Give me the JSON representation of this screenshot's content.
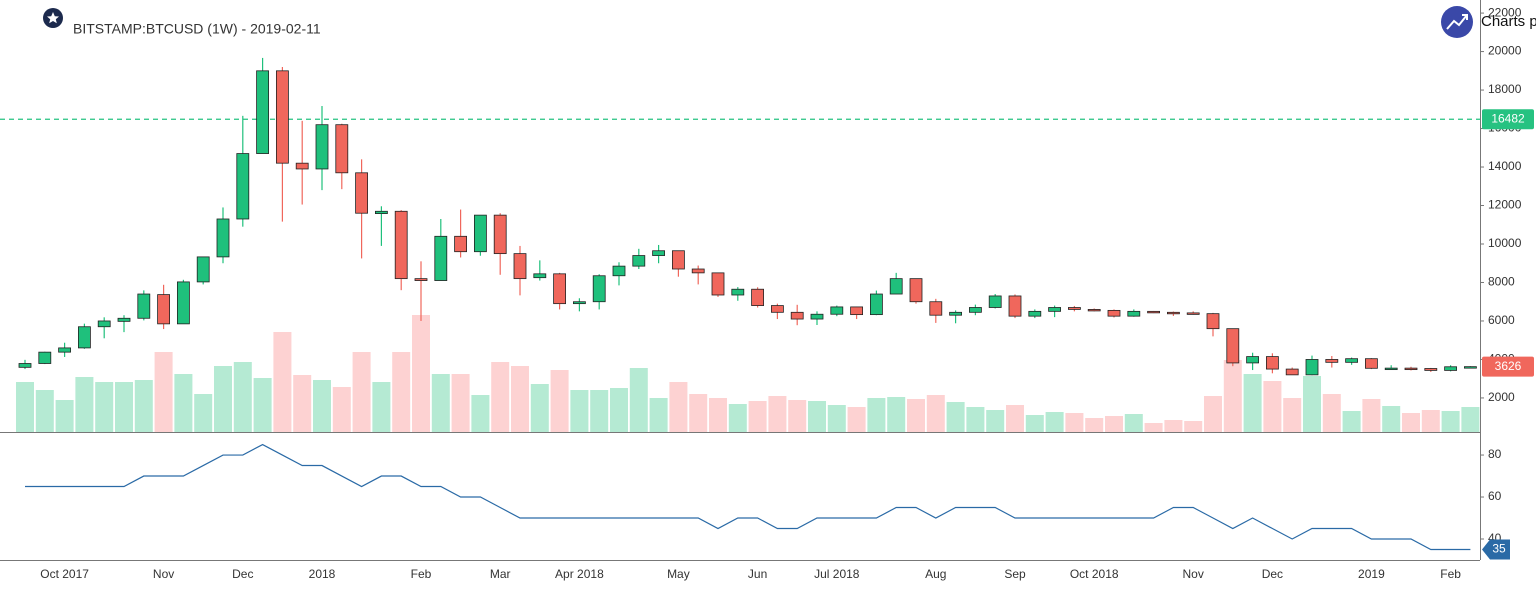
{
  "chart_data": {
    "type": "candlestick",
    "title": "BITSTAMP:BTCUSD (1W) - 2019-02-11",
    "brand": "Charts p",
    "categories": [
      null,
      null,
      "Oct 2017",
      null,
      null,
      null,
      null,
      "Nov",
      null,
      null,
      null,
      "Dec",
      null,
      null,
      null,
      "2018",
      null,
      null,
      null,
      null,
      "Feb",
      null,
      null,
      null,
      "Mar",
      null,
      null,
      null,
      "Apr 2018",
      null,
      null,
      null,
      null,
      "May",
      null,
      null,
      null,
      "Jun",
      null,
      null,
      null,
      "Jul 2018",
      null,
      null,
      null,
      null,
      "Aug",
      null,
      null,
      null,
      "Sep",
      null,
      null,
      null,
      "Oct 2018",
      null,
      null,
      null,
      null,
      "Nov",
      null,
      null,
      null,
      "Dec",
      null,
      null,
      null,
      null,
      "2019",
      null,
      null,
      null,
      "Feb",
      null
    ],
    "open": [
      3590,
      3790,
      4380,
      4600,
      5700,
      5980,
      6140,
      7370,
      5850,
      8030,
      9330,
      11300,
      14700,
      19000,
      14200,
      13900,
      16200,
      13700,
      11580,
      11700,
      8200,
      8100,
      10400,
      9600,
      11500,
      9500,
      8250,
      8450,
      6900,
      7000,
      8350,
      8850,
      9400,
      9650,
      8700,
      8500,
      7350,
      7650,
      6800,
      6450,
      6100,
      6350,
      6730,
      6330,
      7400,
      8200,
      7000,
      6300,
      6450,
      6700,
      7300,
      6250,
      6500,
      6700,
      6600,
      6550,
      6250,
      6500,
      6450,
      6420,
      6380,
      5600,
      3820,
      4150,
      3500,
      3200,
      4000,
      3850,
      4040,
      3540,
      3550,
      3530,
      3430,
      3620
    ],
    "high": [
      3980,
      4400,
      4870,
      5860,
      6190,
      6300,
      7590,
      7880,
      8140,
      9350,
      11900,
      16660,
      19670,
      19200,
      16400,
      17170,
      16250,
      14400,
      11960,
      11760,
      9100,
      11300,
      11790,
      11500,
      11600,
      9900,
      9150,
      8500,
      7180,
      8430,
      9050,
      9750,
      9950,
      9650,
      8880,
      8500,
      7760,
      7750,
      6900,
      6840,
      6500,
      6800,
      6750,
      7580,
      8500,
      8200,
      7150,
      6550,
      6850,
      7400,
      7380,
      6600,
      6800,
      6780,
      6650,
      6600,
      6600,
      6520,
      6490,
      6500,
      6420,
      5600,
      4350,
      4320,
      3580,
      4200,
      4180,
      4100,
      4070,
      3700,
      3620,
      3560,
      3700,
      3650
    ],
    "low": [
      3500,
      3760,
      4130,
      4550,
      5100,
      5420,
      6030,
      5580,
      5850,
      7900,
      9000,
      10900,
      14700,
      11160,
      12050,
      12800,
      12850,
      9250,
      9900,
      7600,
      6000,
      8100,
      9300,
      9390,
      8400,
      7330,
      8100,
      6600,
      6500,
      6600,
      7850,
      8700,
      9000,
      8300,
      7900,
      7250,
      7050,
      6700,
      6100,
      5780,
      5790,
      6250,
      6100,
      6300,
      7400,
      6900,
      5900,
      5880,
      6300,
      6650,
      6150,
      6150,
      6200,
      6500,
      6500,
      6180,
      6220,
      6410,
      6260,
      6330,
      5200,
      3650,
      3450,
      3280,
      3200,
      3180,
      3580,
      3720,
      3500,
      3500,
      3430,
      3350,
      3380,
      3560
    ],
    "close": [
      3790,
      4380,
      4600,
      5700,
      6000,
      6140,
      7400,
      5850,
      8030,
      9330,
      11300,
      14700,
      19000,
      14200,
      13900,
      16200,
      13700,
      11600,
      11700,
      8200,
      8100,
      10400,
      9600,
      11500,
      9500,
      8200,
      8450,
      6900,
      7000,
      8350,
      8850,
      9400,
      9650,
      8700,
      8500,
      7350,
      7650,
      6800,
      6450,
      6100,
      6350,
      6730,
      6330,
      7400,
      8200,
      7000,
      6300,
      6450,
      6700,
      7300,
      6250,
      6500,
      6700,
      6600,
      6550,
      6250,
      6500,
      6450,
      6420,
      6380,
      5600,
      3820,
      4150,
      3500,
      3200,
      4000,
      3850,
      4040,
      3540,
      3550,
      3530,
      3430,
      3620,
      3626
    ],
    "up_color": "#1fc07c",
    "down_color": "#f0675c",
    "ylim": [
      230,
      22680
    ],
    "yticks": [
      2000,
      4000,
      6000,
      8000,
      10000,
      12000,
      14000,
      16000,
      18000,
      20000,
      22000
    ],
    "price_line": {
      "value": 16482,
      "color": "#26c281"
    },
    "volume": [
      50,
      42,
      32,
      55,
      50,
      50,
      52,
      80,
      58,
      38,
      66,
      70,
      54,
      100,
      57,
      52,
      45,
      80,
      50,
      80,
      117,
      58,
      58,
      37,
      70,
      66,
      48,
      62,
      42,
      42,
      44,
      64,
      34,
      50,
      38,
      34,
      28,
      31,
      36,
      32,
      31,
      27,
      25,
      34,
      35,
      33,
      37,
      30,
      25,
      22,
      27,
      17,
      20,
      19,
      14,
      16,
      18,
      9,
      12,
      11,
      36,
      72,
      58,
      51,
      34,
      56,
      38,
      21,
      33,
      26,
      19,
      22,
      21,
      25
    ],
    "volume_lim": [
      0,
      432
    ],
    "up_volume_color": "#b5ead3",
    "down_volume_color": "#fdd2d2",
    "indicator": {
      "color": "#2a6aa6",
      "ylim": [
        30,
        90.5
      ],
      "yticks": [
        40,
        60,
        80
      ],
      "values": [
        65,
        65,
        65,
        65,
        65,
        65,
        70,
        70,
        70,
        75,
        80,
        80,
        85,
        80,
        75,
        75,
        70,
        65,
        70,
        70,
        65,
        65,
        60,
        60,
        55,
        50,
        50,
        50,
        50,
        50,
        50,
        50,
        50,
        50,
        50,
        45,
        50,
        50,
        45,
        45,
        50,
        50,
        50,
        50,
        55,
        55,
        50,
        55,
        55,
        55,
        50,
        50,
        50,
        50,
        50,
        50,
        50,
        50,
        55,
        55,
        50,
        45,
        50,
        45,
        40,
        45,
        45,
        45,
        40,
        40,
        40,
        35,
        35,
        35
      ]
    }
  }
}
